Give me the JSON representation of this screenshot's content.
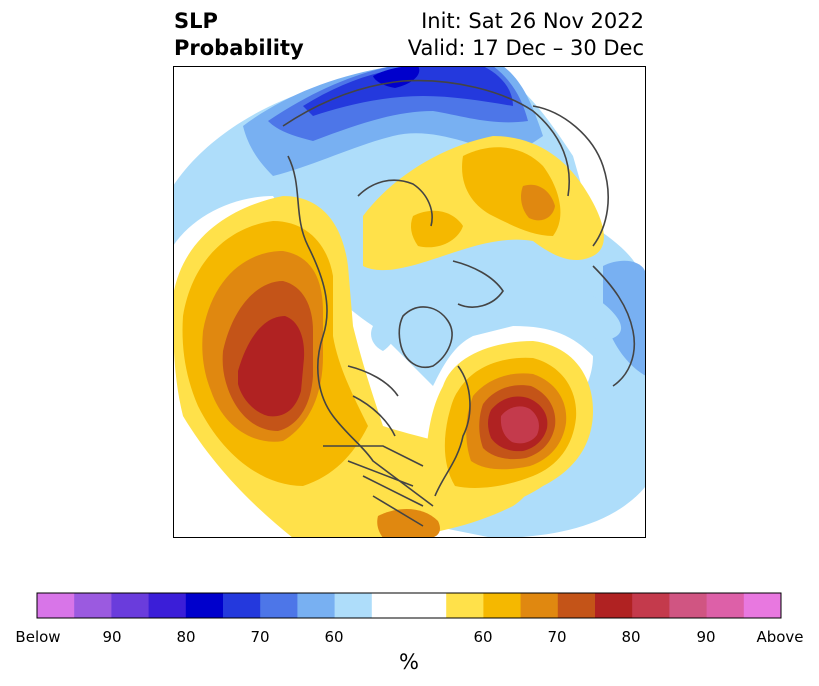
{
  "title": {
    "left_line1": "SLP",
    "left_line2": "Probability",
    "right_line1": "Init: Sat 26 Nov 2022",
    "right_line2": "Valid: 17 Dec – 30 Dec"
  },
  "colorbar": {
    "colors": [
      "#d875e8",
      "#9b5ae0",
      "#6a3cdc",
      "#3b1ed8",
      "#0000cc",
      "#2439dd",
      "#4d76e8",
      "#78b0f2",
      "#aeddfa",
      "#ffffff",
      "#ffffff",
      "#ffe14a",
      "#f5b800",
      "#e08810",
      "#c45418",
      "#b02222",
      "#c43a4c",
      "#d05582",
      "#dd60a8",
      "#e878e0"
    ],
    "tick_labels": [
      "Below",
      "90",
      "80",
      "70",
      "60",
      "60",
      "70",
      "80",
      "90",
      "Above"
    ],
    "unit_label": "%"
  },
  "map": {
    "projection": "north-polar-stereographic",
    "palette": {
      "blue1": "#2439dd",
      "blue2": "#4d76e8",
      "blue3": "#78b0f2",
      "blue4": "#aeddfa",
      "blue_deep": "#0000cc",
      "yellow": "#ffe14a",
      "gold": "#f5b800",
      "orange": "#e08810",
      "burnt": "#c45418",
      "red": "#b02222",
      "rose": "#c43a4c",
      "land_line": "#444444"
    }
  }
}
